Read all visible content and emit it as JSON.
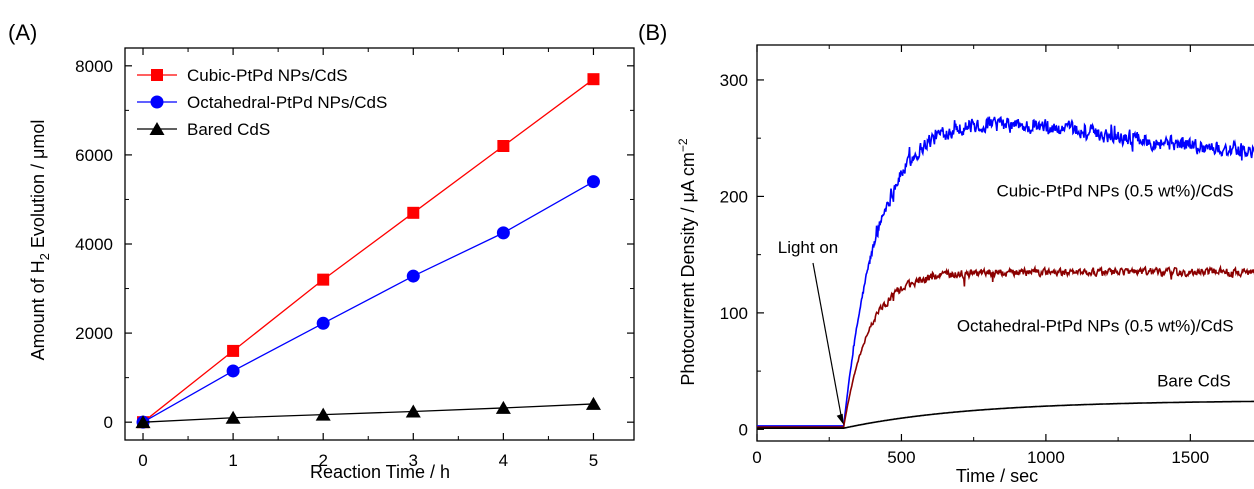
{
  "chart_data": [
    {
      "panel_label": "(A)",
      "type": "line",
      "xlabel": "Reaction Time / h",
      "ylabel_parts": [
        "Amount of H",
        "2",
        " Evolution / μmol"
      ],
      "xlim": [
        -0.2,
        5.45
      ],
      "ylim": [
        -400,
        8400
      ],
      "xticks": [
        0,
        1,
        2,
        3,
        4,
        5
      ],
      "yticks": [
        0,
        2000,
        4000,
        6000,
        8000
      ],
      "legend_position": "top-left",
      "x": [
        0,
        1,
        2,
        3,
        4,
        5
      ],
      "series": [
        {
          "name": "Cubic-PtPd NPs/CdS",
          "color": "#ff0000",
          "marker": "square",
          "values": [
            0,
            1600,
            3200,
            4700,
            6200,
            7700
          ]
        },
        {
          "name": "Octahedral-PtPd NPs/CdS",
          "color": "#0000ff",
          "marker": "circle",
          "values": [
            0,
            1150,
            2220,
            3280,
            4250,
            5400
          ]
        },
        {
          "name": "Bared CdS",
          "color": "#000000",
          "marker": "triangle",
          "values": [
            0,
            100,
            170,
            240,
            320,
            410
          ]
        }
      ]
    },
    {
      "panel_label": "(B)",
      "type": "line",
      "xlabel": "Time / sec",
      "ylabel_parts": [
        "Photocurrent Density / μA cm",
        "−2"
      ],
      "xlim": [
        0,
        1800
      ],
      "ylim": [
        -10,
        330
      ],
      "xticks": [
        0,
        500,
        1000,
        1500
      ],
      "yticks": [
        0,
        100,
        200,
        300
      ],
      "series": [
        {
          "name": "Cubic-PtPd NPs (0.5 wt%)/CdS",
          "color": "#0000ff",
          "style": "noisy",
          "light_on": 300,
          "baseline": 3,
          "plateau": 270,
          "tau": 120,
          "peak_at": 650,
          "end_value": 235,
          "noise": 10,
          "label_x": 1650,
          "label_y": 200
        },
        {
          "name": "Octahedral-PtPd NPs (0.5 wt%)/CdS",
          "color": "#8b0000",
          "style": "noisy",
          "light_on": 300,
          "baseline": 2,
          "plateau": 135,
          "tau": 90,
          "peak_at": 650,
          "end_value": 135,
          "noise": 5,
          "label_x": 1650,
          "label_y": 84
        },
        {
          "name": "Bare CdS",
          "color": "#000000",
          "style": "smooth",
          "light_on": 300,
          "baseline": 1,
          "plateau": 25,
          "tau": 450,
          "label_x": 1640,
          "label_y": 37
        }
      ],
      "annotation": {
        "text": "Light on",
        "at_x": 300,
        "at_y": 4
      }
    }
  ]
}
